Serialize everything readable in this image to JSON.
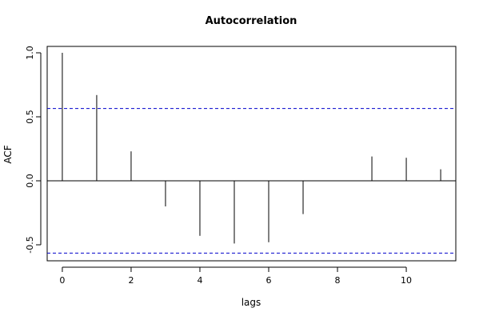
{
  "chart_data": {
    "type": "bar",
    "title": "Autocorrelation",
    "xlabel": "lags",
    "ylabel": "ACF",
    "xlim": [
      -0.44,
      11.44
    ],
    "ylim": [
      -0.625,
      1.05
    ],
    "x_ticks": [
      0,
      2,
      4,
      6,
      8,
      10
    ],
    "x_tick_labels": [
      "0",
      "2",
      "4",
      "6",
      "8",
      "10"
    ],
    "y_ticks": [
      -0.5,
      0.0,
      0.5,
      1.0
    ],
    "y_tick_labels": [
      "-0.5",
      "0.0",
      "0.5",
      "1.0"
    ],
    "x": [
      0,
      1,
      2,
      3,
      4,
      5,
      6,
      7,
      8,
      9,
      10,
      11
    ],
    "values": [
      1.0,
      0.67,
      0.23,
      -0.2,
      -0.43,
      -0.49,
      -0.48,
      -0.26,
      0.0,
      0.19,
      0.18,
      0.09
    ],
    "confidence_bounds": [
      0.565,
      -0.565
    ],
    "confidence_color": "#0000cc",
    "grid": false
  }
}
